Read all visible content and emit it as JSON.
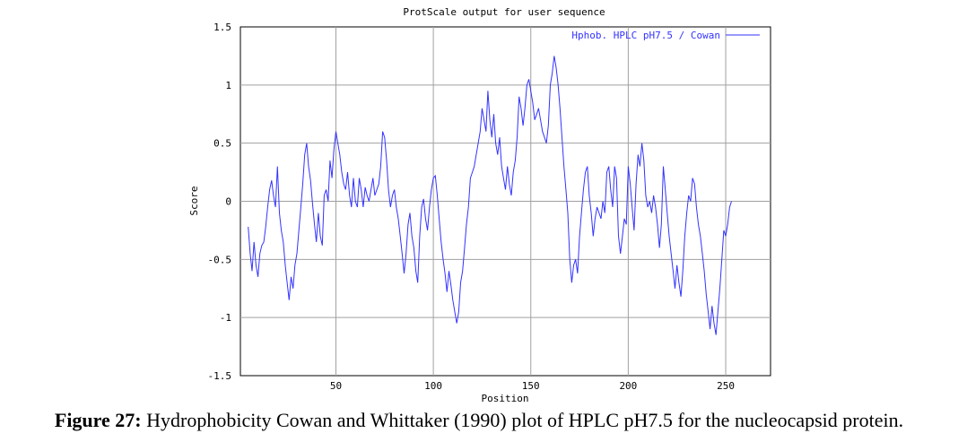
{
  "chart_data": {
    "type": "line",
    "title": "ProtScale output for user sequence",
    "xlabel": "Position",
    "ylabel": "Score",
    "xlim": [
      1,
      273
    ],
    "ylim": [
      -1.5,
      1.5
    ],
    "x_ticks": [
      50,
      100,
      150,
      200,
      250
    ],
    "y_ticks": [
      1.5,
      1,
      0.5,
      0,
      -0.5,
      -1,
      -1.5
    ],
    "y_tick_labels": [
      "1.5",
      "1",
      "0.5",
      "0",
      "-0.5",
      "-1",
      "-1.5"
    ],
    "grid": true,
    "legend_position": "top-right",
    "series": [
      {
        "name": "Hphob. HPLC pH7.5 / Cowan",
        "color": "#3333ff",
        "points": [
          [
            5,
            -0.22
          ],
          [
            6,
            -0.45
          ],
          [
            7,
            -0.6
          ],
          [
            8,
            -0.35
          ],
          [
            9,
            -0.55
          ],
          [
            10,
            -0.65
          ],
          [
            11,
            -0.45
          ],
          [
            12,
            -0.38
          ],
          [
            13,
            -0.35
          ],
          [
            14,
            -0.22
          ],
          [
            15,
            -0.05
          ],
          [
            16,
            0.1
          ],
          [
            17,
            0.18
          ],
          [
            18,
            0.05
          ],
          [
            19,
            -0.05
          ],
          [
            20,
            0.3
          ],
          [
            21,
            -0.1
          ],
          [
            22,
            -0.25
          ],
          [
            23,
            -0.35
          ],
          [
            24,
            -0.55
          ],
          [
            25,
            -0.7
          ],
          [
            26,
            -0.85
          ],
          [
            27,
            -0.65
          ],
          [
            28,
            -0.75
          ],
          [
            29,
            -0.55
          ],
          [
            30,
            -0.45
          ],
          [
            31,
            -0.25
          ],
          [
            32,
            -0.05
          ],
          [
            33,
            0.15
          ],
          [
            34,
            0.4
          ],
          [
            35,
            0.5
          ],
          [
            36,
            0.3
          ],
          [
            37,
            0.18
          ],
          [
            38,
            -0.02
          ],
          [
            39,
            -0.2
          ],
          [
            40,
            -0.35
          ],
          [
            41,
            -0.1
          ],
          [
            42,
            -0.3
          ],
          [
            43,
            -0.38
          ],
          [
            44,
            0.05
          ],
          [
            45,
            0.1
          ],
          [
            46,
            0.0
          ],
          [
            47,
            0.35
          ],
          [
            48,
            0.2
          ],
          [
            49,
            0.45
          ],
          [
            50,
            0.6
          ],
          [
            51,
            0.5
          ],
          [
            52,
            0.4
          ],
          [
            53,
            0.25
          ],
          [
            54,
            0.15
          ],
          [
            55,
            0.1
          ],
          [
            56,
            0.25
          ],
          [
            57,
            0.05
          ],
          [
            58,
            -0.05
          ],
          [
            59,
            0.2
          ],
          [
            60,
            0.0
          ],
          [
            61,
            -0.05
          ],
          [
            62,
            0.2
          ],
          [
            63,
            0.1
          ],
          [
            64,
            -0.05
          ],
          [
            65,
            0.12
          ],
          [
            66,
            0.05
          ],
          [
            67,
            0.0
          ],
          [
            68,
            0.1
          ],
          [
            69,
            0.2
          ],
          [
            70,
            0.05
          ],
          [
            71,
            0.1
          ],
          [
            72,
            0.15
          ],
          [
            73,
            0.3
          ],
          [
            74,
            0.6
          ],
          [
            75,
            0.55
          ],
          [
            76,
            0.35
          ],
          [
            77,
            0.1
          ],
          [
            78,
            -0.05
          ],
          [
            79,
            0.05
          ],
          [
            80,
            0.1
          ],
          [
            81,
            -0.05
          ],
          [
            82,
            -0.15
          ],
          [
            83,
            -0.3
          ],
          [
            84,
            -0.45
          ],
          [
            85,
            -0.62
          ],
          [
            86,
            -0.45
          ],
          [
            87,
            -0.2
          ],
          [
            88,
            -0.1
          ],
          [
            89,
            -0.3
          ],
          [
            90,
            -0.4
          ],
          [
            91,
            -0.6
          ],
          [
            92,
            -0.7
          ],
          [
            93,
            -0.3
          ],
          [
            94,
            -0.05
          ],
          [
            95,
            0.02
          ],
          [
            96,
            -0.15
          ],
          [
            97,
            -0.25
          ],
          [
            98,
            -0.05
          ],
          [
            99,
            0.1
          ],
          [
            100,
            0.2
          ],
          [
            101,
            0.22
          ],
          [
            102,
            0.05
          ],
          [
            103,
            -0.15
          ],
          [
            104,
            -0.35
          ],
          [
            105,
            -0.5
          ],
          [
            106,
            -0.62
          ],
          [
            107,
            -0.78
          ],
          [
            108,
            -0.6
          ],
          [
            109,
            -0.72
          ],
          [
            110,
            -0.85
          ],
          [
            111,
            -0.95
          ],
          [
            112,
            -1.05
          ],
          [
            113,
            -0.95
          ],
          [
            114,
            -0.7
          ],
          [
            115,
            -0.6
          ],
          [
            116,
            -0.4
          ],
          [
            117,
            -0.2
          ],
          [
            118,
            -0.05
          ],
          [
            119,
            0.2
          ],
          [
            120,
            0.25
          ],
          [
            121,
            0.3
          ],
          [
            122,
            0.4
          ],
          [
            123,
            0.5
          ],
          [
            124,
            0.6
          ],
          [
            125,
            0.8
          ],
          [
            126,
            0.7
          ],
          [
            127,
            0.6
          ],
          [
            128,
            0.95
          ],
          [
            129,
            0.7
          ],
          [
            130,
            0.55
          ],
          [
            131,
            0.75
          ],
          [
            132,
            0.5
          ],
          [
            133,
            0.4
          ],
          [
            134,
            0.55
          ],
          [
            135,
            0.3
          ],
          [
            136,
            0.2
          ],
          [
            137,
            0.1
          ],
          [
            138,
            0.3
          ],
          [
            139,
            0.15
          ],
          [
            140,
            0.05
          ],
          [
            141,
            0.25
          ],
          [
            142,
            0.35
          ],
          [
            143,
            0.55
          ],
          [
            144,
            0.9
          ],
          [
            145,
            0.8
          ],
          [
            146,
            0.65
          ],
          [
            147,
            0.8
          ],
          [
            148,
            1.0
          ],
          [
            149,
            1.05
          ],
          [
            150,
            0.95
          ],
          [
            151,
            0.85
          ],
          [
            152,
            0.7
          ],
          [
            153,
            0.75
          ],
          [
            154,
            0.8
          ],
          [
            155,
            0.7
          ],
          [
            156,
            0.6
          ],
          [
            157,
            0.55
          ],
          [
            158,
            0.5
          ],
          [
            159,
            0.65
          ],
          [
            160,
            1.0
          ],
          [
            161,
            1.1
          ],
          [
            162,
            1.25
          ],
          [
            163,
            1.15
          ],
          [
            164,
            1.0
          ],
          [
            165,
            0.8
          ],
          [
            166,
            0.55
          ],
          [
            167,
            0.3
          ],
          [
            168,
            0.1
          ],
          [
            169,
            -0.1
          ],
          [
            170,
            -0.5
          ],
          [
            171,
            -0.7
          ],
          [
            172,
            -0.55
          ],
          [
            173,
            -0.5
          ],
          [
            174,
            -0.62
          ],
          [
            175,
            -0.3
          ],
          [
            176,
            -0.1
          ],
          [
            177,
            0.1
          ],
          [
            178,
            0.25
          ],
          [
            179,
            0.3
          ],
          [
            180,
            0.05
          ],
          [
            181,
            -0.1
          ],
          [
            182,
            -0.3
          ],
          [
            183,
            -0.15
          ],
          [
            184,
            -0.05
          ],
          [
            185,
            -0.1
          ],
          [
            186,
            -0.15
          ],
          [
            187,
            0.0
          ],
          [
            188,
            -0.1
          ],
          [
            189,
            0.25
          ],
          [
            190,
            0.3
          ],
          [
            191,
            0.1
          ],
          [
            192,
            -0.05
          ],
          [
            193,
            0.3
          ],
          [
            194,
            0.2
          ],
          [
            195,
            -0.3
          ],
          [
            196,
            -0.45
          ],
          [
            197,
            -0.3
          ],
          [
            198,
            -0.15
          ],
          [
            199,
            -0.2
          ],
          [
            200,
            0.3
          ],
          [
            201,
            0.15
          ],
          [
            202,
            -0.05
          ],
          [
            203,
            -0.25
          ],
          [
            204,
            0.15
          ],
          [
            205,
            0.4
          ],
          [
            206,
            0.3
          ],
          [
            207,
            0.5
          ],
          [
            208,
            0.35
          ],
          [
            209,
            0.05
          ],
          [
            210,
            -0.05
          ],
          [
            211,
            0.0
          ],
          [
            212,
            -0.1
          ],
          [
            213,
            0.05
          ],
          [
            214,
            -0.05
          ],
          [
            215,
            -0.2
          ],
          [
            216,
            -0.4
          ],
          [
            217,
            -0.2
          ],
          [
            218,
            0.3
          ],
          [
            219,
            0.1
          ],
          [
            220,
            -0.1
          ],
          [
            221,
            -0.3
          ],
          [
            222,
            -0.45
          ],
          [
            223,
            -0.6
          ],
          [
            224,
            -0.75
          ],
          [
            225,
            -0.55
          ],
          [
            226,
            -0.7
          ],
          [
            227,
            -0.82
          ],
          [
            228,
            -0.6
          ],
          [
            229,
            -0.3
          ],
          [
            230,
            -0.1
          ],
          [
            231,
            0.05
          ],
          [
            232,
            0.0
          ],
          [
            233,
            0.2
          ],
          [
            234,
            0.15
          ],
          [
            235,
            -0.05
          ],
          [
            236,
            -0.2
          ],
          [
            237,
            -0.3
          ],
          [
            238,
            -0.45
          ],
          [
            239,
            -0.6
          ],
          [
            240,
            -0.8
          ],
          [
            241,
            -0.95
          ],
          [
            242,
            -1.1
          ],
          [
            243,
            -0.9
          ],
          [
            244,
            -1.05
          ],
          [
            245,
            -1.15
          ],
          [
            246,
            -0.95
          ],
          [
            247,
            -0.75
          ],
          [
            248,
            -0.5
          ],
          [
            249,
            -0.25
          ],
          [
            250,
            -0.3
          ],
          [
            251,
            -0.2
          ],
          [
            252,
            -0.05
          ],
          [
            253,
            0.0
          ]
        ]
      }
    ]
  },
  "caption": {
    "label": "Figure 27:",
    "text": " Hydrophobicity Cowan and Whittaker (1990) plot of HPLC pH7.5 for the nucleocapsid protein."
  }
}
